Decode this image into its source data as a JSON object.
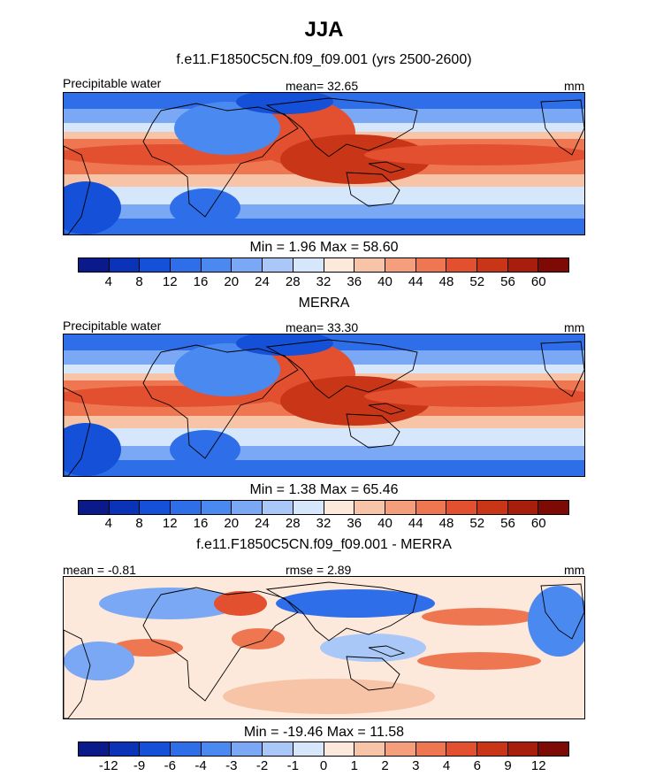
{
  "title": "JJA",
  "panels": [
    {
      "heading": "f.e11.F1850C5CN.f09_f09.001 (yrs 2500-2600)",
      "left_label": "Precipitable water",
      "center_label": "mean=  32.65",
      "right_label": "mm",
      "minmax": "Min =   1.96 Max =  58.60"
    },
    {
      "heading": "MERRA",
      "left_label": "Precipitable water",
      "center_label": "mean=  33.30",
      "right_label": "mm",
      "minmax": "Min =   1.38 Max =  65.46"
    },
    {
      "heading": "f.e11.F1850C5CN.f09_f09.001 - MERRA",
      "left_label": "mean =  -0.81",
      "center_label": "rmse =   2.89",
      "right_label": "mm",
      "minmax": "Min = -19.46 Max =  11.58"
    }
  ],
  "chart_data": [
    {
      "type": "heatmap",
      "title": "f.e11.F1850C5CN.f09_f09.001 (yrs 2500-2600)",
      "variable": "Precipitable water",
      "units": "mm",
      "mean": 32.65,
      "min": 1.96,
      "max": 58.6,
      "levels": [
        4,
        8,
        12,
        16,
        20,
        24,
        28,
        32,
        36,
        40,
        44,
        48,
        52,
        56,
        60
      ],
      "tick_labels": [
        "4",
        "8",
        "12",
        "16",
        "20",
        "24",
        "28",
        "32",
        "36",
        "40",
        "44",
        "48",
        "52",
        "56",
        "60"
      ],
      "colors": [
        "#0a1a8a",
        "#0b33b8",
        "#1450d8",
        "#2e6ee8",
        "#4a8af0",
        "#7aa8f4",
        "#a9c8f8",
        "#d6e6fb",
        "#fde8dc",
        "#f8c4a8",
        "#f49e7c",
        "#ee7752",
        "#e2502f",
        "#c93617",
        "#a81e0c",
        "#7d0a05"
      ]
    },
    {
      "type": "heatmap",
      "title": "MERRA",
      "variable": "Precipitable water",
      "units": "mm",
      "mean": 33.3,
      "min": 1.38,
      "max": 65.46,
      "levels": [
        4,
        8,
        12,
        16,
        20,
        24,
        28,
        32,
        36,
        40,
        44,
        48,
        52,
        56,
        60
      ],
      "tick_labels": [
        "4",
        "8",
        "12",
        "16",
        "20",
        "24",
        "28",
        "32",
        "36",
        "40",
        "44",
        "48",
        "52",
        "56",
        "60"
      ],
      "colors": [
        "#0a1a8a",
        "#0b33b8",
        "#1450d8",
        "#2e6ee8",
        "#4a8af0",
        "#7aa8f4",
        "#a9c8f8",
        "#d6e6fb",
        "#fde8dc",
        "#f8c4a8",
        "#f49e7c",
        "#ee7752",
        "#e2502f",
        "#c93617",
        "#a81e0c",
        "#7d0a05"
      ]
    },
    {
      "type": "heatmap",
      "title": "f.e11.F1850C5CN.f09_f09.001 - MERRA",
      "units": "mm",
      "mean": -0.81,
      "rmse": 2.89,
      "min": -19.46,
      "max": 11.58,
      "levels": [
        -12,
        -9,
        -6,
        -4,
        -3,
        -2,
        -1,
        0,
        1,
        2,
        3,
        4,
        6,
        9,
        12
      ],
      "tick_labels": [
        "-12",
        "-9",
        "-6",
        "-4",
        "-3",
        "-2",
        "-1",
        "0",
        "1",
        "2",
        "3",
        "4",
        "6",
        "9",
        "12"
      ],
      "colors": [
        "#0a1a8a",
        "#0b33b8",
        "#1450d8",
        "#2e6ee8",
        "#4a8af0",
        "#7aa8f4",
        "#a9c8f8",
        "#d6e6fb",
        "#fde8dc",
        "#f8c4a8",
        "#f49e7c",
        "#ee7752",
        "#e2502f",
        "#c93617",
        "#a81e0c",
        "#7d0a05"
      ]
    }
  ]
}
